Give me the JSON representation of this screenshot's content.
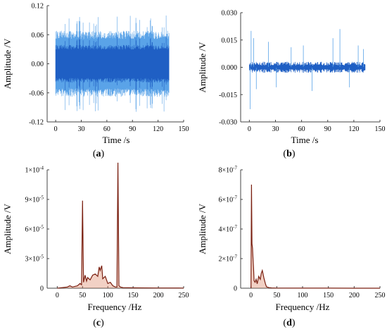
{
  "figure": {
    "colors": {
      "time_signal": "#1f5fc4",
      "time_signal_light": "#5aa3e8",
      "spectrum": "#7a1f10",
      "spectrum_fill": "#d97a5a",
      "axis": "#444444"
    }
  },
  "chart_data": [
    {
      "id": "a",
      "type": "line",
      "panel_label": "(a)",
      "xlabel": "Time /s",
      "ylabel": "Amplitude /V",
      "xlim": [
        -10,
        150
      ],
      "ylim": [
        -0.12,
        0.12
      ],
      "xticks": [
        "0",
        "30",
        "60",
        "90",
        "120",
        "150"
      ],
      "yticks": [
        "-0.12",
        "-0.06",
        "0.00",
        "0.06",
        "0.12"
      ],
      "x_range": [
        0,
        133
      ],
      "envelope": {
        "typical_peak": 0.065,
        "max_peak": 0.095
      },
      "color": "#1f5fc4"
    },
    {
      "id": "b",
      "type": "line",
      "panel_label": "(b)",
      "xlabel": "Time /s",
      "ylabel": "Amplitude /V",
      "xlim": [
        -10,
        150
      ],
      "ylim": [
        -0.03,
        0.03
      ],
      "xticks": [
        "0",
        "30",
        "60",
        "90",
        "120",
        "150"
      ],
      "yticks": [
        "-0.030",
        "-0.015",
        "0.000",
        "0.015",
        "0.030"
      ],
      "x_range": [
        0,
        133
      ],
      "envelope": {
        "typical_peak": 0.002
      },
      "spikes": [
        {
          "x": 1,
          "y": -0.023
        },
        {
          "x": 2,
          "y": 0.02
        },
        {
          "x": 5,
          "y": 0.016
        },
        {
          "x": 8,
          "y": -0.012
        },
        {
          "x": 22,
          "y": 0.014
        },
        {
          "x": 31,
          "y": -0.011
        },
        {
          "x": 48,
          "y": 0.011
        },
        {
          "x": 62,
          "y": 0.012
        },
        {
          "x": 72,
          "y": -0.013
        },
        {
          "x": 96,
          "y": 0.016
        },
        {
          "x": 104,
          "y": 0.021
        },
        {
          "x": 115,
          "y": -0.011
        },
        {
          "x": 125,
          "y": 0.012
        },
        {
          "x": 131,
          "y": 0.01
        }
      ],
      "color": "#1f5fc4"
    },
    {
      "id": "c",
      "type": "line",
      "panel_label": "(c)",
      "xlabel": "Frequency /Hz",
      "ylabel": "Amplitude /V",
      "xlim": [
        -20,
        250
      ],
      "ylim": [
        0,
        0.0001
      ],
      "xticks": [
        "0",
        "50",
        "100",
        "150",
        "200",
        "250"
      ],
      "yticks": [
        "0",
        "3×10-5",
        "6×10-5",
        "9×10-5",
        "1×10-4"
      ],
      "x": [
        0,
        20,
        25,
        30,
        40,
        45,
        48,
        50,
        52,
        55,
        58,
        60,
        65,
        70,
        75,
        80,
        83,
        85,
        88,
        90,
        95,
        100,
        105,
        110,
        115,
        118,
        120,
        122,
        125,
        130,
        150,
        200,
        250
      ],
      "y": [
        0,
        1e-06,
        2e-06,
        1e-06,
        2e-06,
        4e-06,
        3e-06,
        7.4e-05,
        5e-06,
        1.1e-05,
        6e-06,
        9e-06,
        7e-06,
        1.1e-05,
        1.2e-05,
        1e-05,
        1.8e-05,
        1.5e-05,
        1.9e-05,
        8e-06,
        1e-05,
        4e-06,
        5e-06,
        2e-06,
        1e-06,
        1e-06,
        0.000106,
        2e-06,
        1e-06,
        5e-07,
        3e-07,
        2e-07,
        1e-07
      ],
      "color": "#7a1f10"
    },
    {
      "id": "d",
      "type": "line",
      "panel_label": "(d)",
      "xlabel": "Frequency /Hz",
      "ylabel": "Amplitude /V",
      "xlim": [
        -20,
        250
      ],
      "ylim": [
        0,
        8e-07
      ],
      "xticks": [
        "0",
        "50",
        "100",
        "150",
        "200",
        "250"
      ],
      "yticks": [
        "0",
        "2×10-7",
        "4×10-7",
        "6×10-7",
        "8×10-7"
      ],
      "x": [
        0,
        1,
        2,
        3,
        4,
        5,
        6,
        8,
        10,
        12,
        15,
        18,
        20,
        22,
        25,
        28,
        30,
        35,
        40,
        50,
        100,
        150,
        200,
        250
      ],
      "y": [
        0,
        7e-07,
        3e-07,
        2.7e-07,
        2e-07,
        1.4e-07,
        5e-08,
        4e-08,
        6e-08,
        3e-08,
        8e-08,
        6e-08,
        1e-07,
        1.2e-07,
        7e-08,
        3e-08,
        1e-08,
        4e-09,
        2e-09,
        1e-09,
        5e-10,
        3e-10,
        2e-10,
        1e-10
      ],
      "color": "#7a1f10"
    }
  ]
}
